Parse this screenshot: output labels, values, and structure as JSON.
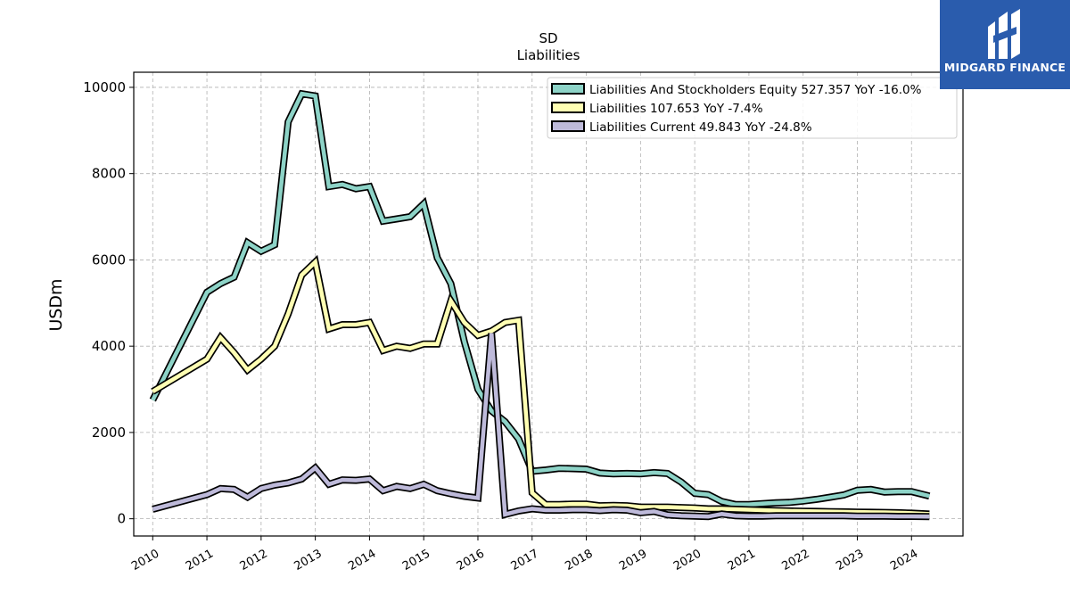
{
  "chart_data": {
    "type": "line",
    "title": "SD",
    "subtitle": "Liabilities",
    "ylabel": "USDm",
    "xlabel": "",
    "ylim": [
      -400,
      10350
    ],
    "xlim": [
      2009.65,
      2024.95
    ],
    "yticks": [
      0,
      2000,
      4000,
      6000,
      8000,
      10000
    ],
    "xticks": [
      2010,
      2011,
      2012,
      2013,
      2014,
      2015,
      2016,
      2017,
      2018,
      2019,
      2020,
      2021,
      2022,
      2023,
      2024
    ],
    "grid": true,
    "legend_placement": "top-right",
    "series": [
      {
        "name": "Liabilities And Stockholders Equity  527.357 YoY -16.0%",
        "color": "#8dd3c7",
        "x": [
          2010.0,
          2011.0,
          2011.25,
          2011.5,
          2011.75,
          2012.0,
          2012.25,
          2012.5,
          2012.75,
          2013.0,
          2013.25,
          2013.5,
          2013.75,
          2014.0,
          2014.25,
          2014.5,
          2014.75,
          2015.0,
          2015.25,
          2015.5,
          2015.75,
          2016.0,
          2016.25,
          2016.5,
          2016.75,
          2017.0,
          2017.25,
          2017.5,
          2017.75,
          2018.0,
          2018.25,
          2018.5,
          2018.75,
          2019.0,
          2019.25,
          2019.5,
          2019.75,
          2020.0,
          2020.25,
          2020.5,
          2020.75,
          2021.0,
          2021.25,
          2021.5,
          2021.75,
          2022.0,
          2022.25,
          2022.5,
          2022.75,
          2023.0,
          2023.25,
          2023.5,
          2023.75,
          2024.0,
          2024.33
        ],
        "values": [
          2750,
          5250,
          5450,
          5600,
          6400,
          6200,
          6350,
          9200,
          9850,
          9800,
          7700,
          7750,
          7650,
          7700,
          6900,
          6950,
          7000,
          7300,
          6050,
          5450,
          4100,
          3000,
          2500,
          2250,
          1850,
          1100,
          1130,
          1170,
          1160,
          1150,
          1060,
          1040,
          1050,
          1040,
          1070,
          1050,
          850,
          590,
          560,
          400,
          330,
          330,
          350,
          370,
          380,
          410,
          450,
          500,
          550,
          660,
          680,
          620,
          630,
          630,
          527
        ]
      },
      {
        "name": "Liabilities  107.653 YoY -7.4%",
        "color": "#ffffb3",
        "x": [
          2010.0,
          2011.0,
          2011.25,
          2011.5,
          2011.75,
          2012.0,
          2012.25,
          2012.5,
          2012.75,
          2013.0,
          2013.25,
          2013.5,
          2013.75,
          2014.0,
          2014.25,
          2014.5,
          2014.75,
          2015.0,
          2015.25,
          2015.5,
          2015.75,
          2016.0,
          2016.25,
          2016.5,
          2016.75,
          2017.0,
          2017.25,
          2017.5,
          2017.75,
          2018.0,
          2018.25,
          2018.5,
          2018.75,
          2019.0,
          2019.25,
          2019.5,
          2019.75,
          2020.0,
          2020.25,
          2020.5,
          2020.75,
          2021.0,
          2021.25,
          2021.5,
          2021.75,
          2022.0,
          2022.25,
          2022.5,
          2022.75,
          2023.0,
          2023.25,
          2023.5,
          2023.75,
          2024.0,
          2024.33
        ],
        "values": [
          2950,
          3700,
          4200,
          3850,
          3450,
          3700,
          4000,
          4750,
          5650,
          5950,
          4400,
          4500,
          4500,
          4550,
          3900,
          4000,
          3950,
          4050,
          4050,
          5050,
          4550,
          4250,
          4350,
          4550,
          4600,
          600,
          330,
          330,
          340,
          340,
          300,
          310,
          300,
          270,
          270,
          270,
          260,
          250,
          230,
          230,
          220,
          210,
          200,
          190,
          180,
          175,
          170,
          165,
          160,
          155,
          150,
          145,
          140,
          130,
          108
        ]
      },
      {
        "name": "Liabilities Current  49.843 YoY -24.8%",
        "color": "#bebada",
        "x": [
          2010.0,
          2011.0,
          2011.25,
          2011.5,
          2011.75,
          2012.0,
          2012.25,
          2012.5,
          2012.75,
          2013.0,
          2013.25,
          2013.5,
          2013.75,
          2014.0,
          2014.25,
          2014.5,
          2014.75,
          2015.0,
          2015.25,
          2015.5,
          2015.75,
          2016.0,
          2016.25,
          2016.5,
          2016.75,
          2017.0,
          2017.25,
          2017.5,
          2017.75,
          2018.0,
          2018.25,
          2018.5,
          2018.75,
          2019.0,
          2019.25,
          2019.5,
          2019.75,
          2020.0,
          2020.25,
          2020.5,
          2020.75,
          2021.0,
          2021.25,
          2021.5,
          2021.75,
          2022.0,
          2022.25,
          2022.5,
          2022.75,
          2023.0,
          2023.25,
          2023.5,
          2023.75,
          2024.0,
          2024.33
        ],
        "values": [
          220,
          560,
          700,
          680,
          500,
          700,
          780,
          830,
          920,
          1180,
          800,
          900,
          890,
          920,
          650,
          750,
          700,
          800,
          650,
          580,
          520,
          480,
          4300,
          100,
          180,
          230,
          200,
          200,
          210,
          210,
          190,
          210,
          200,
          140,
          170,
          90,
          70,
          60,
          50,
          110,
          70,
          60,
          60,
          70,
          70,
          70,
          70,
          70,
          70,
          60,
          60,
          60,
          55,
          55,
          50
        ]
      }
    ]
  },
  "logo": {
    "text": "MIDGARD FINANCE",
    "color": "#2a5cad"
  }
}
